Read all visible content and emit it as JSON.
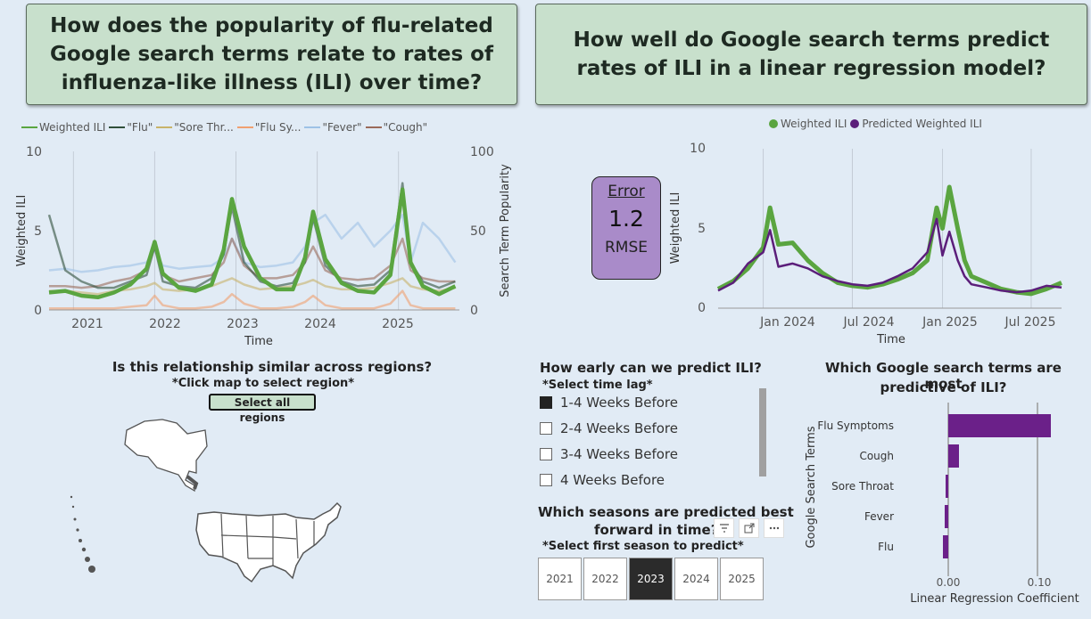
{
  "header_left": {
    "title": "How does the popularity of flu-related Google search terms relate to rates of influenza-like illness (ILI) over time?"
  },
  "header_right": {
    "title": "How well do Google search terms predict rates of ILI in a linear regression model?"
  },
  "colors": {
    "ili_green": "#5aa540",
    "flu_dark": "#2f4f3a",
    "sore_throat": "#c8b36a",
    "flu_symptoms": "#f0a070",
    "fever": "#9ec2e6",
    "cough": "#9a6a5a",
    "predicted_purple": "#5b1e7a",
    "bar_purple": "#6b2089",
    "title_bg": "#c8e0cc",
    "error_bg": "#a98bc9",
    "page_bg": "#e1ebf5"
  },
  "left_chart": {
    "legend": [
      "Weighted ILI",
      "\"Flu\"",
      "\"Sore Thr...",
      "\"Flu Sy...",
      "\"Fever\"",
      "\"Cough\""
    ],
    "y_left_label": "Weighted ILI",
    "y_right_label": "Search Term Popularity",
    "x_label": "Time",
    "x_ticks": [
      "2021",
      "2022",
      "2023",
      "2024",
      "2025"
    ],
    "y_left_ticks": [
      "10",
      "5",
      "0"
    ],
    "y_right_ticks": [
      "100",
      "50",
      "0"
    ]
  },
  "right_chart": {
    "legend": [
      "Weighted ILI",
      "Predicted Weighted ILI"
    ],
    "y_label": "Weighted ILI",
    "x_label": "Time",
    "x_ticks": [
      "Jan 2024",
      "Jul 2024",
      "Jan 2025",
      "Jul 2025"
    ],
    "y_ticks": [
      "10",
      "5",
      "0"
    ]
  },
  "error_card": {
    "label": "Error",
    "value": "1.2",
    "metric": "RMSE"
  },
  "regions": {
    "question": "Is this relationship similar across regions?",
    "instruction": "*Click map to select region*",
    "select_all_button": "Select all regions"
  },
  "lag": {
    "question": "How early can we predict ILI?",
    "instruction": "*Select time lag*",
    "options": [
      {
        "label": "1-4 Weeks Before",
        "selected": true
      },
      {
        "label": "2-4 Weeks Before",
        "selected": false
      },
      {
        "label": "3-4 Weeks Before",
        "selected": false
      },
      {
        "label": "4 Weeks Before",
        "selected": false
      }
    ]
  },
  "seasons": {
    "question_line1": "Which seasons are predicted best",
    "question_line2": "forward in time?",
    "instruction": "*Select first season to predict*",
    "options": [
      {
        "label": "2021",
        "selected": false
      },
      {
        "label": "2022",
        "selected": false
      },
      {
        "label": "2023",
        "selected": true
      },
      {
        "label": "2024",
        "selected": false
      },
      {
        "label": "2025",
        "selected": false
      }
    ],
    "toolbar": {
      "filter_icon": "filter-icon",
      "expand_icon": "expand-icon",
      "more_icon": "more-icon"
    }
  },
  "coef_chart_header": {
    "line1": "Which Google search terms are most",
    "line2": "predictive of ILI?"
  },
  "chart_data": [
    {
      "type": "line",
      "title": "",
      "xlabel": "Time",
      "ylabel": "Weighted ILI",
      "y2label": "Search Term Popularity",
      "ylim": [
        0,
        10
      ],
      "y2lim": [
        0,
        100
      ],
      "x": [
        2020.7,
        2020.9,
        2021.1,
        2021.3,
        2021.5,
        2021.7,
        2021.9,
        2022.0,
        2022.1,
        2022.3,
        2022.5,
        2022.7,
        2022.85,
        2022.95,
        2023.1,
        2023.3,
        2023.5,
        2023.7,
        2023.85,
        2023.95,
        2024.1,
        2024.3,
        2024.5,
        2024.7,
        2024.9,
        2025.05,
        2025.15,
        2025.3,
        2025.5,
        2025.7
      ],
      "series": [
        {
          "name": "Weighted ILI",
          "axis": "left",
          "values": [
            1.1,
            1.2,
            0.9,
            0.8,
            1.1,
            1.6,
            2.6,
            4.3,
            2.3,
            1.4,
            1.2,
            1.6,
            3.8,
            7.0,
            4.0,
            2.0,
            1.3,
            1.3,
            3.3,
            6.2,
            3.2,
            1.7,
            1.2,
            1.1,
            2.2,
            7.6,
            3.0,
            1.5,
            1.0,
            1.5
          ]
        },
        {
          "name": "\"Flu\"",
          "axis": "right",
          "values": [
            60,
            25,
            18,
            14,
            14,
            18,
            22,
            40,
            18,
            15,
            14,
            20,
            35,
            65,
            30,
            18,
            15,
            17,
            30,
            58,
            28,
            18,
            15,
            16,
            25,
            80,
            30,
            18,
            14,
            18
          ]
        },
        {
          "name": "\"Sore Thr...",
          "axis": "right",
          "values": [
            12,
            12,
            11,
            10,
            12,
            13,
            15,
            17,
            13,
            12,
            13,
            15,
            18,
            20,
            16,
            13,
            14,
            15,
            17,
            19,
            15,
            13,
            13,
            14,
            17,
            20,
            15,
            13,
            12,
            14
          ]
        },
        {
          "name": "\"Flu Sy...",
          "axis": "right",
          "values": [
            1,
            1,
            1,
            1,
            1,
            2,
            3,
            9,
            3,
            1,
            1,
            2,
            5,
            10,
            4,
            1,
            1,
            2,
            5,
            9,
            3,
            1,
            1,
            1,
            4,
            12,
            3,
            1,
            1,
            1
          ]
        },
        {
          "name": "\"Fever\"",
          "axis": "right",
          "values": [
            25,
            26,
            24,
            25,
            27,
            28,
            30,
            38,
            28,
            26,
            27,
            28,
            33,
            45,
            30,
            27,
            28,
            30,
            40,
            55,
            60,
            45,
            55,
            40,
            50,
            60,
            30,
            55,
            45,
            30
          ]
        },
        {
          "name": "\"Cough\"",
          "axis": "right",
          "values": [
            15,
            15,
            14,
            15,
            18,
            20,
            25,
            40,
            22,
            18,
            20,
            22,
            30,
            45,
            28,
            20,
            20,
            22,
            30,
            40,
            25,
            20,
            19,
            20,
            28,
            45,
            25,
            20,
            18,
            18
          ]
        }
      ]
    },
    {
      "type": "line",
      "title": "",
      "xlabel": "Time",
      "ylabel": "Weighted ILI",
      "ylim": [
        0,
        10
      ],
      "x": [
        "2023-10",
        "2023-11",
        "2023-12",
        "2024-01",
        "2024-01-15",
        "2024-02",
        "2024-03",
        "2024-04",
        "2024-05",
        "2024-06",
        "2024-07",
        "2024-08",
        "2024-09",
        "2024-10",
        "2024-11",
        "2024-12",
        "2024-12-20",
        "2025-01",
        "2025-01-15",
        "2025-02",
        "2025-02-15",
        "2025-03",
        "2025-04",
        "2025-05",
        "2025-06",
        "2025-07",
        "2025-08",
        "2025-09"
      ],
      "series": [
        {
          "name": "Weighted ILI",
          "values": [
            1.2,
            1.7,
            2.5,
            3.8,
            6.3,
            4.0,
            4.1,
            3.0,
            2.2,
            1.6,
            1.4,
            1.3,
            1.5,
            1.8,
            2.2,
            3.0,
            6.3,
            5.0,
            7.6,
            5.0,
            3.0,
            2.0,
            1.6,
            1.2,
            1.0,
            0.9,
            1.2,
            1.6
          ]
        },
        {
          "name": "Predicted Weighted ILI",
          "values": [
            1.1,
            1.6,
            2.8,
            3.5,
            4.9,
            2.6,
            2.8,
            2.5,
            2.0,
            1.7,
            1.5,
            1.4,
            1.6,
            2.0,
            2.5,
            3.5,
            5.6,
            3.3,
            4.8,
            3.0,
            2.0,
            1.5,
            1.3,
            1.1,
            1.0,
            1.1,
            1.4,
            1.3
          ]
        }
      ]
    },
    {
      "type": "bar",
      "orientation": "horizontal",
      "title": "",
      "xlabel": "Linear Regression Coefficient",
      "ylabel": "Google Search Terms",
      "categories": [
        "Flu Symptoms",
        "Cough",
        "Sore Throat",
        "Fever",
        "Flu"
      ],
      "values": [
        0.115,
        0.012,
        -0.003,
        -0.004,
        -0.006
      ],
      "xlim": [
        -0.01,
        0.13
      ],
      "x_ticks": [
        "0.00",
        "0.10"
      ]
    }
  ]
}
